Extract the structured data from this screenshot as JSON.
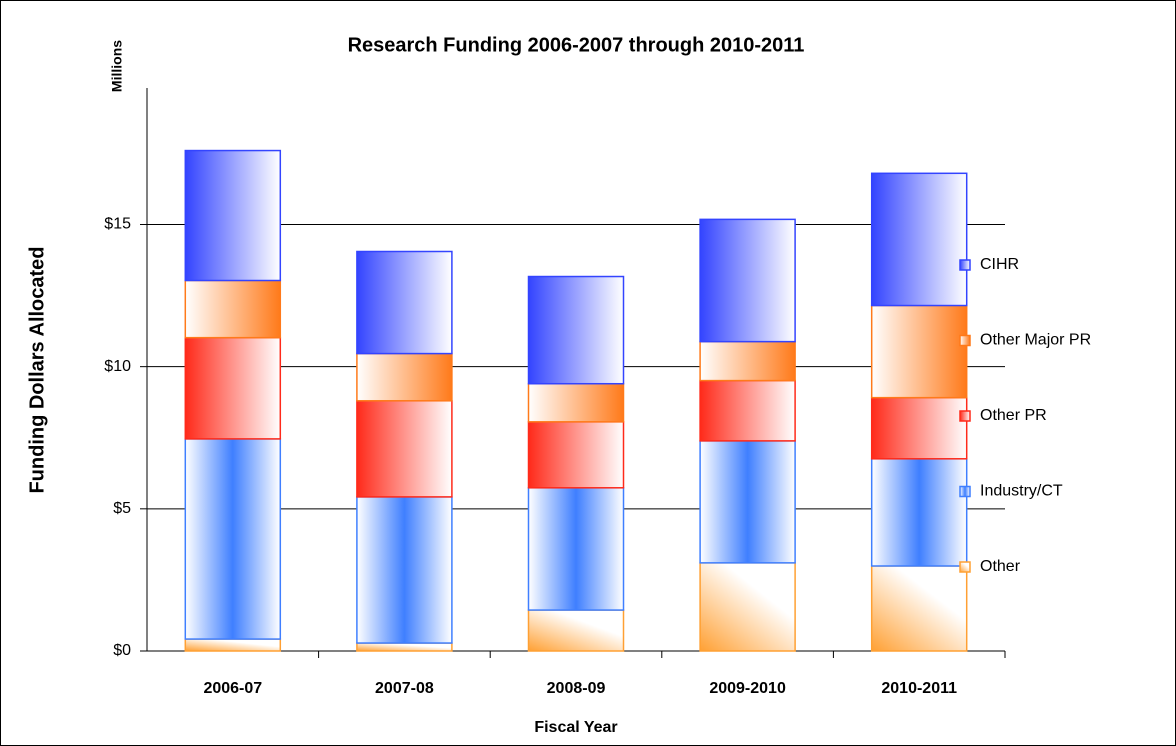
{
  "chart_data": {
    "type": "stacked_bar",
    "title": "Research Funding 2006-2007 through 2010-2011",
    "unit_label": "Millions",
    "y_axis_label": "Funding Dollars Allocated",
    "x_axis_label": "Fiscal Year",
    "categories": [
      "2006-07",
      "2007-08",
      "2008-09",
      "2009-2010",
      "2010-2011"
    ],
    "series": [
      {
        "name": "Other",
        "color": "#ffa033",
        "values": [
          0.42,
          0.28,
          1.44,
          3.1,
          2.99
        ]
      },
      {
        "name": "Industry/CT",
        "color": "#3f7fff",
        "values": [
          7.04,
          5.14,
          4.3,
          4.29,
          3.77
        ]
      },
      {
        "name": "Other PR",
        "color": "#ff2a1a",
        "values": [
          3.56,
          3.38,
          2.32,
          2.12,
          2.15
        ]
      },
      {
        "name": "Other Major PR",
        "color": "#ff7a1a",
        "values": [
          2.01,
          1.66,
          1.34,
          1.37,
          3.24
        ]
      },
      {
        "name": "CIHR",
        "color": "#3344ff",
        "values": [
          4.57,
          3.59,
          3.77,
          4.3,
          4.65
        ]
      }
    ],
    "ylim": [
      0,
      19.8
    ],
    "yticks": [
      {
        "value": 0,
        "label": "$0"
      },
      {
        "value": 5,
        "label": "$5"
      },
      {
        "value": 10,
        "label": "$10"
      },
      {
        "value": 15,
        "label": "$15"
      }
    ],
    "grid": true,
    "legend": "right"
  }
}
